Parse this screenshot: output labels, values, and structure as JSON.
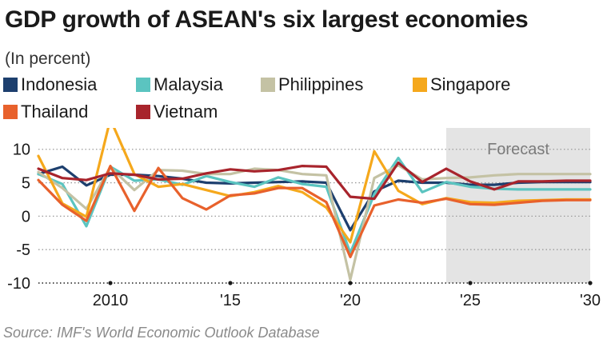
{
  "chart_data": {
    "type": "line",
    "title": "GDP growth of ASEAN's six largest economies",
    "subtitle": "(In percent)",
    "source": "Source: IMF's World Economic Outlook Database",
    "forecast_label": "Forecast",
    "forecast_range": [
      2024,
      2030
    ],
    "xlim": [
      2007,
      2030
    ],
    "ylim": [
      -10,
      12
    ],
    "yticks": [
      -10,
      -5,
      0,
      5,
      10
    ],
    "xticks": [
      {
        "value": 2010,
        "label": "2010"
      },
      {
        "value": 2015,
        "label": "'15"
      },
      {
        "value": 2020,
        "label": "'20"
      },
      {
        "value": 2025,
        "label": "'25"
      },
      {
        "value": 2030,
        "label": "'30"
      }
    ],
    "grid": "horizontal dotted",
    "legend_position": "top",
    "x": [
      2007,
      2008,
      2009,
      2010,
      2011,
      2012,
      2013,
      2014,
      2015,
      2016,
      2017,
      2018,
      2019,
      2020,
      2021,
      2022,
      2023,
      2024,
      2025,
      2026,
      2027,
      2028,
      2029,
      2030
    ],
    "series": [
      {
        "name": "Indonesia",
        "color": "#1d3f6e",
        "values": [
          6.3,
          7.4,
          4.6,
          6.2,
          6.2,
          6.0,
          5.6,
          5.0,
          4.9,
          5.0,
          5.1,
          5.2,
          5.0,
          -2.1,
          3.7,
          5.3,
          5.0,
          5.0,
          4.7,
          4.7,
          5.0,
          5.1,
          5.1,
          5.1
        ]
      },
      {
        "name": "Malaysia",
        "color": "#5bc4c0",
        "values": [
          6.3,
          4.8,
          -1.5,
          7.4,
          5.3,
          5.5,
          4.7,
          6.0,
          5.1,
          4.4,
          5.8,
          4.8,
          4.4,
          -5.5,
          3.3,
          8.7,
          3.6,
          5.1,
          4.4,
          4.1,
          4.0,
          4.0,
          4.0,
          4.0
        ]
      },
      {
        "name": "Philippines",
        "color": "#c4c2a4",
        "values": [
          6.6,
          4.2,
          1.1,
          7.3,
          3.9,
          6.9,
          6.8,
          6.3,
          6.3,
          7.1,
          6.9,
          6.3,
          6.1,
          -9.5,
          5.7,
          7.6,
          5.5,
          5.7,
          5.8,
          6.1,
          6.3,
          6.3,
          6.3,
          6.3
        ]
      },
      {
        "name": "Singapore",
        "color": "#f5a81c",
        "values": [
          9.0,
          1.9,
          -0.1,
          14.5,
          6.3,
          4.4,
          4.8,
          3.9,
          3.0,
          3.6,
          4.5,
          3.6,
          1.3,
          -3.9,
          9.7,
          3.8,
          1.8,
          2.7,
          2.1,
          2.0,
          2.3,
          2.4,
          2.5,
          2.5
        ]
      },
      {
        "name": "Thailand",
        "color": "#e8612c",
        "values": [
          5.4,
          1.7,
          -0.7,
          7.5,
          0.8,
          7.2,
          2.7,
          1.0,
          3.1,
          3.4,
          4.2,
          4.2,
          2.1,
          -6.1,
          1.6,
          2.5,
          2.0,
          2.6,
          1.8,
          1.7,
          2.0,
          2.3,
          2.4,
          2.4
        ]
      },
      {
        "name": "Vietnam",
        "color": "#a8242c",
        "values": [
          7.1,
          5.7,
          5.4,
          6.4,
          6.2,
          5.5,
          5.6,
          6.4,
          7.0,
          6.7,
          6.9,
          7.5,
          7.4,
          2.9,
          2.6,
          8.0,
          5.1,
          7.1,
          5.2,
          4.0,
          5.2,
          5.2,
          5.3,
          5.3
        ]
      }
    ]
  }
}
